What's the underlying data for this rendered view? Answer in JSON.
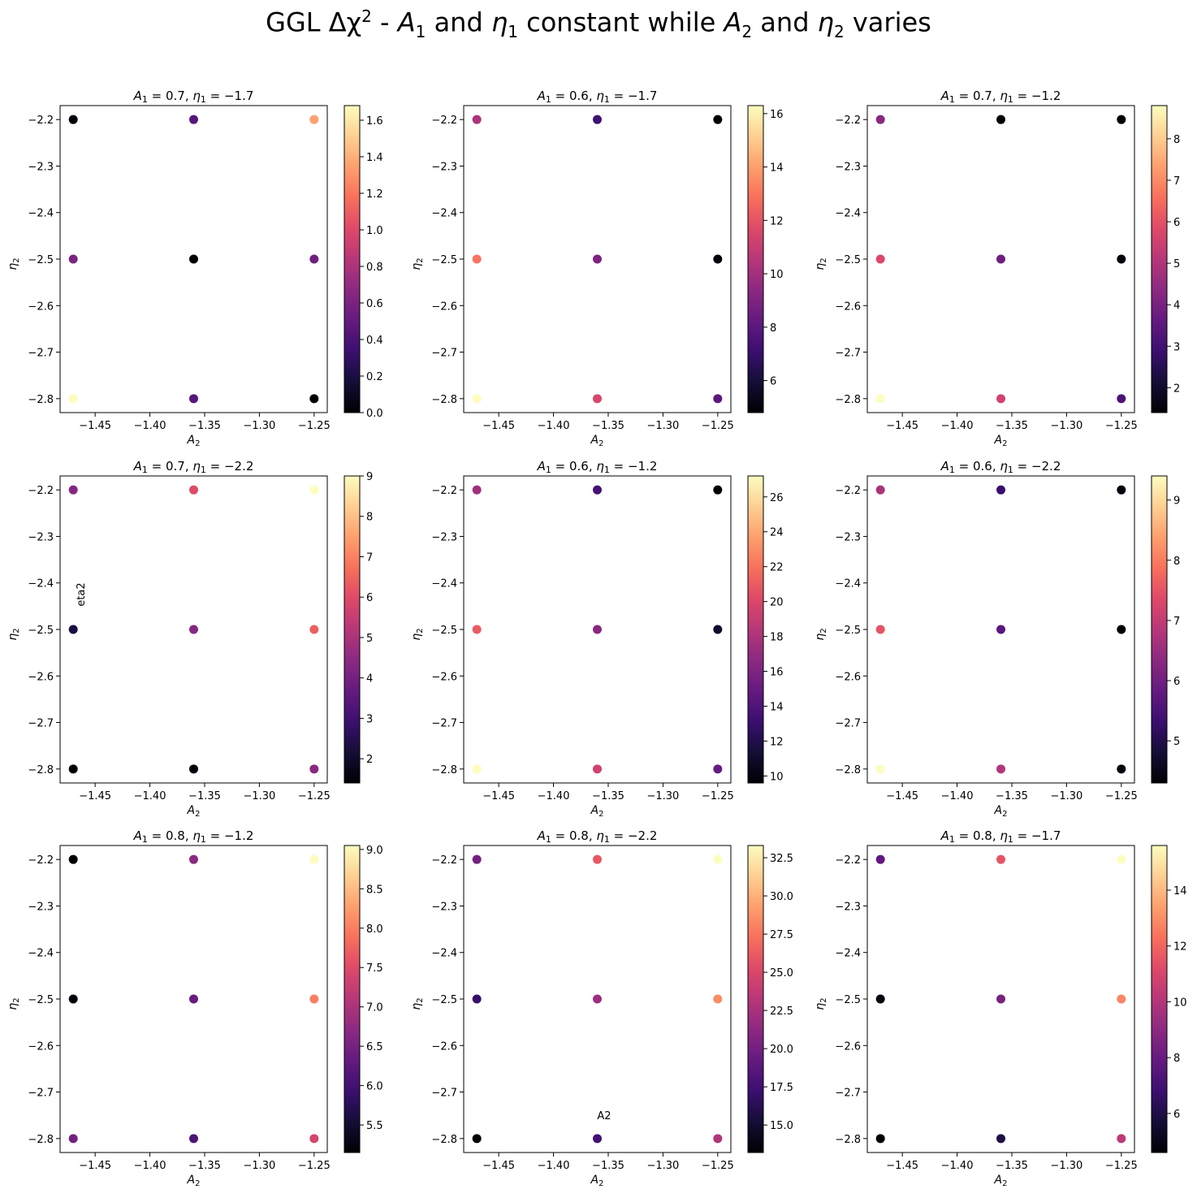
{
  "figure": {
    "title": {
      "prefix": "GGL Δχ",
      "sup": "2",
      "text1": " - ",
      "a1": "A",
      "a1sub": "1",
      "and1": " and ",
      "e1": "η",
      "e1sub": "1",
      "mid": " constant while ",
      "a2": "A",
      "a2sub": "2",
      "and2": " and ",
      "e2": "η",
      "e2sub": "2",
      "end": " varies"
    },
    "colormap": "magma",
    "colormap_stops": [
      "#000004",
      "#140e36",
      "#3b0f70",
      "#641a80",
      "#8c2981",
      "#b73779",
      "#de4968",
      "#f7705c",
      "#fe9f6d",
      "#fecf92",
      "#fcfdbf"
    ]
  },
  "chart_data": [
    {
      "type": "scatter",
      "title_A1": "0.7",
      "title_eta1": "−1.7",
      "xlabel": "A2",
      "ylabel": "η2",
      "x_ticks": [
        "−1.45",
        "−1.40",
        "−1.35",
        "−1.30",
        "−1.25"
      ],
      "y_ticks": [
        "−2.2",
        "−2.3",
        "−2.4",
        "−2.5",
        "−2.6",
        "−2.7",
        "−2.8"
      ],
      "cbar_range": [
        0,
        1.68
      ],
      "cbar_ticks": [
        "0.0",
        "0.2",
        "0.4",
        "0.6",
        "0.8",
        "1.0",
        "1.2",
        "1.4",
        "1.6"
      ],
      "cbar_tick_values": [
        0,
        0.2,
        0.4,
        0.6,
        0.8,
        1.0,
        1.2,
        1.4,
        1.6
      ],
      "points": [
        {
          "x": -1.47,
          "y": -2.2,
          "c": 0.02
        },
        {
          "x": -1.36,
          "y": -2.2,
          "c": 0.45
        },
        {
          "x": -1.25,
          "y": -2.2,
          "c": 1.35
        },
        {
          "x": -1.47,
          "y": -2.5,
          "c": 0.6
        },
        {
          "x": -1.36,
          "y": -2.5,
          "c": 0.0
        },
        {
          "x": -1.25,
          "y": -2.5,
          "c": 0.55
        },
        {
          "x": -1.47,
          "y": -2.8,
          "c": 1.68
        },
        {
          "x": -1.36,
          "y": -2.8,
          "c": 0.45
        },
        {
          "x": -1.25,
          "y": -2.8,
          "c": 0.0
        }
      ]
    },
    {
      "type": "scatter",
      "title_A1": "0.6",
      "title_eta1": "−1.7",
      "xlabel": "A2",
      "ylabel": "η2",
      "x_ticks": [
        "−1.45",
        "−1.40",
        "−1.35",
        "−1.30",
        "−1.25"
      ],
      "y_ticks": [
        "−2.2",
        "−2.3",
        "−2.4",
        "−2.5",
        "−2.6",
        "−2.7",
        "−2.8"
      ],
      "cbar_range": [
        4.8,
        16.3
      ],
      "cbar_ticks": [
        "6",
        "8",
        "10",
        "12",
        "14",
        "16"
      ],
      "cbar_tick_values": [
        6,
        8,
        10,
        12,
        14,
        16
      ],
      "points": [
        {
          "x": -1.47,
          "y": -2.2,
          "c": 10.2
        },
        {
          "x": -1.36,
          "y": -2.2,
          "c": 7.2
        },
        {
          "x": -1.25,
          "y": -2.2,
          "c": 4.8
        },
        {
          "x": -1.47,
          "y": -2.5,
          "c": 13.0
        },
        {
          "x": -1.36,
          "y": -2.5,
          "c": 9.0
        },
        {
          "x": -1.25,
          "y": -2.5,
          "c": 4.9
        },
        {
          "x": -1.47,
          "y": -2.8,
          "c": 16.3
        },
        {
          "x": -1.36,
          "y": -2.8,
          "c": 11.5
        },
        {
          "x": -1.25,
          "y": -2.8,
          "c": 8.0
        }
      ]
    },
    {
      "type": "scatter",
      "title_A1": "0.7",
      "title_eta1": "−1.2",
      "xlabel": "A2",
      "ylabel": "η2",
      "x_ticks": [
        "−1.45",
        "−1.40",
        "−1.35",
        "−1.30",
        "−1.25"
      ],
      "y_ticks": [
        "−2.2",
        "−2.3",
        "−2.4",
        "−2.5",
        "−2.6",
        "−2.7",
        "−2.8"
      ],
      "cbar_range": [
        1.4,
        8.8
      ],
      "cbar_ticks": [
        "2",
        "3",
        "4",
        "5",
        "6",
        "7",
        "8"
      ],
      "cbar_tick_values": [
        2,
        3,
        4,
        5,
        6,
        7,
        8
      ],
      "points": [
        {
          "x": -1.47,
          "y": -2.2,
          "c": 4.3
        },
        {
          "x": -1.36,
          "y": -2.2,
          "c": 1.4
        },
        {
          "x": -1.25,
          "y": -2.2,
          "c": 1.4
        },
        {
          "x": -1.47,
          "y": -2.5,
          "c": 5.8
        },
        {
          "x": -1.36,
          "y": -2.5,
          "c": 3.8
        },
        {
          "x": -1.25,
          "y": -2.5,
          "c": 1.5
        },
        {
          "x": -1.47,
          "y": -2.8,
          "c": 8.8
        },
        {
          "x": -1.36,
          "y": -2.8,
          "c": 5.6
        },
        {
          "x": -1.25,
          "y": -2.8,
          "c": 3.2
        }
      ]
    },
    {
      "type": "scatter",
      "title_A1": "0.7",
      "title_eta1": "−2.2",
      "xlabel": "A2",
      "ylabel": "η2",
      "annotation": "eta2",
      "x_ticks": [
        "−1.45",
        "−1.40",
        "−1.35",
        "−1.30",
        "−1.25"
      ],
      "y_ticks": [
        "−2.2",
        "−2.3",
        "−2.4",
        "−2.5",
        "−2.6",
        "−2.7",
        "−2.8"
      ],
      "cbar_range": [
        1.4,
        9.0
      ],
      "cbar_ticks": [
        "2",
        "3",
        "4",
        "5",
        "6",
        "7",
        "8",
        "9"
      ],
      "cbar_tick_values": [
        2,
        3,
        4,
        5,
        6,
        7,
        8,
        9
      ],
      "points": [
        {
          "x": -1.47,
          "y": -2.2,
          "c": 4.3
        },
        {
          "x": -1.36,
          "y": -2.2,
          "c": 6.0
        },
        {
          "x": -1.25,
          "y": -2.2,
          "c": 9.0
        },
        {
          "x": -1.47,
          "y": -2.5,
          "c": 2.3
        },
        {
          "x": -1.36,
          "y": -2.5,
          "c": 4.3
        },
        {
          "x": -1.25,
          "y": -2.5,
          "c": 6.4
        },
        {
          "x": -1.47,
          "y": -2.8,
          "c": 1.4
        },
        {
          "x": -1.36,
          "y": -2.8,
          "c": 1.5
        },
        {
          "x": -1.25,
          "y": -2.8,
          "c": 4.4
        }
      ]
    },
    {
      "type": "scatter",
      "title_A1": "0.6",
      "title_eta1": "−1.2",
      "xlabel": "A2",
      "ylabel": "η2",
      "x_ticks": [
        "−1.45",
        "−1.40",
        "−1.35",
        "−1.30",
        "−1.25"
      ],
      "y_ticks": [
        "−2.2",
        "−2.3",
        "−2.4",
        "−2.5",
        "−2.6",
        "−2.7",
        "−2.8"
      ],
      "cbar_range": [
        9.6,
        27.2
      ],
      "cbar_ticks": [
        "10",
        "12",
        "14",
        "16",
        "18",
        "20",
        "22",
        "24",
        "26"
      ],
      "cbar_tick_values": [
        10,
        12,
        14,
        16,
        18,
        20,
        22,
        24,
        26
      ],
      "points": [
        {
          "x": -1.47,
          "y": -2.2,
          "c": 17.5
        },
        {
          "x": -1.36,
          "y": -2.2,
          "c": 13.5
        },
        {
          "x": -1.25,
          "y": -2.2,
          "c": 9.6
        },
        {
          "x": -1.47,
          "y": -2.5,
          "c": 21.0
        },
        {
          "x": -1.36,
          "y": -2.5,
          "c": 16.5
        },
        {
          "x": -1.25,
          "y": -2.5,
          "c": 11.0
        },
        {
          "x": -1.47,
          "y": -2.8,
          "c": 27.2
        },
        {
          "x": -1.36,
          "y": -2.8,
          "c": 19.5
        },
        {
          "x": -1.25,
          "y": -2.8,
          "c": 15.0
        }
      ]
    },
    {
      "type": "scatter",
      "title_A1": "0.6",
      "title_eta1": "−2.2",
      "xlabel": "A2",
      "ylabel": "η2",
      "x_ticks": [
        "−1.45",
        "−1.40",
        "−1.35",
        "−1.30",
        "−1.25"
      ],
      "y_ticks": [
        "−2.2",
        "−2.3",
        "−2.4",
        "−2.5",
        "−2.6",
        "−2.7",
        "−2.8"
      ],
      "cbar_range": [
        4.3,
        9.4
      ],
      "cbar_ticks": [
        "5",
        "6",
        "7",
        "8",
        "9"
      ],
      "cbar_tick_values": [
        5,
        6,
        7,
        8,
        9
      ],
      "points": [
        {
          "x": -1.47,
          "y": -2.2,
          "c": 6.7
        },
        {
          "x": -1.36,
          "y": -2.2,
          "c": 5.3
        },
        {
          "x": -1.25,
          "y": -2.2,
          "c": 4.4
        },
        {
          "x": -1.47,
          "y": -2.5,
          "c": 7.5
        },
        {
          "x": -1.36,
          "y": -2.5,
          "c": 5.7
        },
        {
          "x": -1.25,
          "y": -2.5,
          "c": 4.3
        },
        {
          "x": -1.47,
          "y": -2.8,
          "c": 9.4
        },
        {
          "x": -1.36,
          "y": -2.8,
          "c": 6.8
        },
        {
          "x": -1.25,
          "y": -2.8,
          "c": 4.4
        }
      ]
    },
    {
      "type": "scatter",
      "title_A1": "0.8",
      "title_eta1": "−1.2",
      "xlabel": "A2",
      "ylabel": "η2",
      "x_ticks": [
        "−1.45",
        "−1.40",
        "−1.35",
        "−1.30",
        "−1.25"
      ],
      "y_ticks": [
        "−2.2",
        "−2.3",
        "−2.4",
        "−2.5",
        "−2.6",
        "−2.7",
        "−2.8"
      ],
      "cbar_range": [
        5.15,
        9.05
      ],
      "cbar_ticks": [
        "5.5",
        "6.0",
        "6.5",
        "7.0",
        "7.5",
        "8.0",
        "8.5",
        "9.0"
      ],
      "cbar_tick_values": [
        5.5,
        6.0,
        6.5,
        7.0,
        7.5,
        8.0,
        8.5,
        9.0
      ],
      "points": [
        {
          "x": -1.47,
          "y": -2.2,
          "c": 5.15
        },
        {
          "x": -1.36,
          "y": -2.2,
          "c": 6.7
        },
        {
          "x": -1.25,
          "y": -2.2,
          "c": 9.05
        },
        {
          "x": -1.47,
          "y": -2.5,
          "c": 5.2
        },
        {
          "x": -1.36,
          "y": -2.5,
          "c": 6.35
        },
        {
          "x": -1.25,
          "y": -2.5,
          "c": 8.0
        },
        {
          "x": -1.47,
          "y": -2.8,
          "c": 6.5
        },
        {
          "x": -1.36,
          "y": -2.8,
          "c": 6.1
        },
        {
          "x": -1.25,
          "y": -2.8,
          "c": 7.4
        }
      ]
    },
    {
      "type": "scatter",
      "title_A1": "0.8",
      "title_eta1": "−2.2",
      "xlabel": "A2",
      "ylabel": "η2",
      "annotation": "A2",
      "x_ticks": [
        "−1.45",
        "−1.40",
        "−1.35",
        "−1.30",
        "−1.25"
      ],
      "y_ticks": [
        "−2.2",
        "−2.3",
        "−2.4",
        "−2.5",
        "−2.6",
        "−2.7",
        "−2.8"
      ],
      "cbar_range": [
        13.2,
        33.3
      ],
      "cbar_ticks": [
        "15.0",
        "17.5",
        "20.0",
        "22.5",
        "25.0",
        "27.5",
        "30.0",
        "32.5"
      ],
      "cbar_tick_values": [
        15.0,
        17.5,
        20.0,
        22.5,
        25.0,
        27.5,
        30.0,
        32.5
      ],
      "points": [
        {
          "x": -1.47,
          "y": -2.2,
          "c": 20.0
        },
        {
          "x": -1.36,
          "y": -2.2,
          "c": 26.0
        },
        {
          "x": -1.25,
          "y": -2.2,
          "c": 33.3
        },
        {
          "x": -1.47,
          "y": -2.5,
          "c": 17.0
        },
        {
          "x": -1.36,
          "y": -2.5,
          "c": 22.0
        },
        {
          "x": -1.25,
          "y": -2.5,
          "c": 28.5
        },
        {
          "x": -1.47,
          "y": -2.8,
          "c": 13.2
        },
        {
          "x": -1.36,
          "y": -2.8,
          "c": 17.5
        },
        {
          "x": -1.25,
          "y": -2.8,
          "c": 23.0
        }
      ]
    },
    {
      "type": "scatter",
      "title_A1": "0.8",
      "title_eta1": "−1.7",
      "xlabel": "A2",
      "ylabel": "η2",
      "x_ticks": [
        "−1.45",
        "−1.40",
        "−1.35",
        "−1.30",
        "−1.25"
      ],
      "y_ticks": [
        "−2.2",
        "−2.3",
        "−2.4",
        "−2.5",
        "−2.6",
        "−2.7",
        "−2.8"
      ],
      "cbar_range": [
        4.6,
        15.6
      ],
      "cbar_ticks": [
        "6",
        "8",
        "10",
        "12",
        "14"
      ],
      "cbar_tick_values": [
        6,
        8,
        10,
        12,
        14
      ],
      "points": [
        {
          "x": -1.47,
          "y": -2.2,
          "c": 7.8
        },
        {
          "x": -1.36,
          "y": -2.2,
          "c": 11.5
        },
        {
          "x": -1.25,
          "y": -2.2,
          "c": 15.6
        },
        {
          "x": -1.47,
          "y": -2.5,
          "c": 4.8
        },
        {
          "x": -1.36,
          "y": -2.5,
          "c": 8.5
        },
        {
          "x": -1.25,
          "y": -2.5,
          "c": 12.8
        },
        {
          "x": -1.47,
          "y": -2.8,
          "c": 4.6
        },
        {
          "x": -1.36,
          "y": -2.8,
          "c": 6.0
        },
        {
          "x": -1.25,
          "y": -2.8,
          "c": 10.3
        }
      ]
    }
  ]
}
